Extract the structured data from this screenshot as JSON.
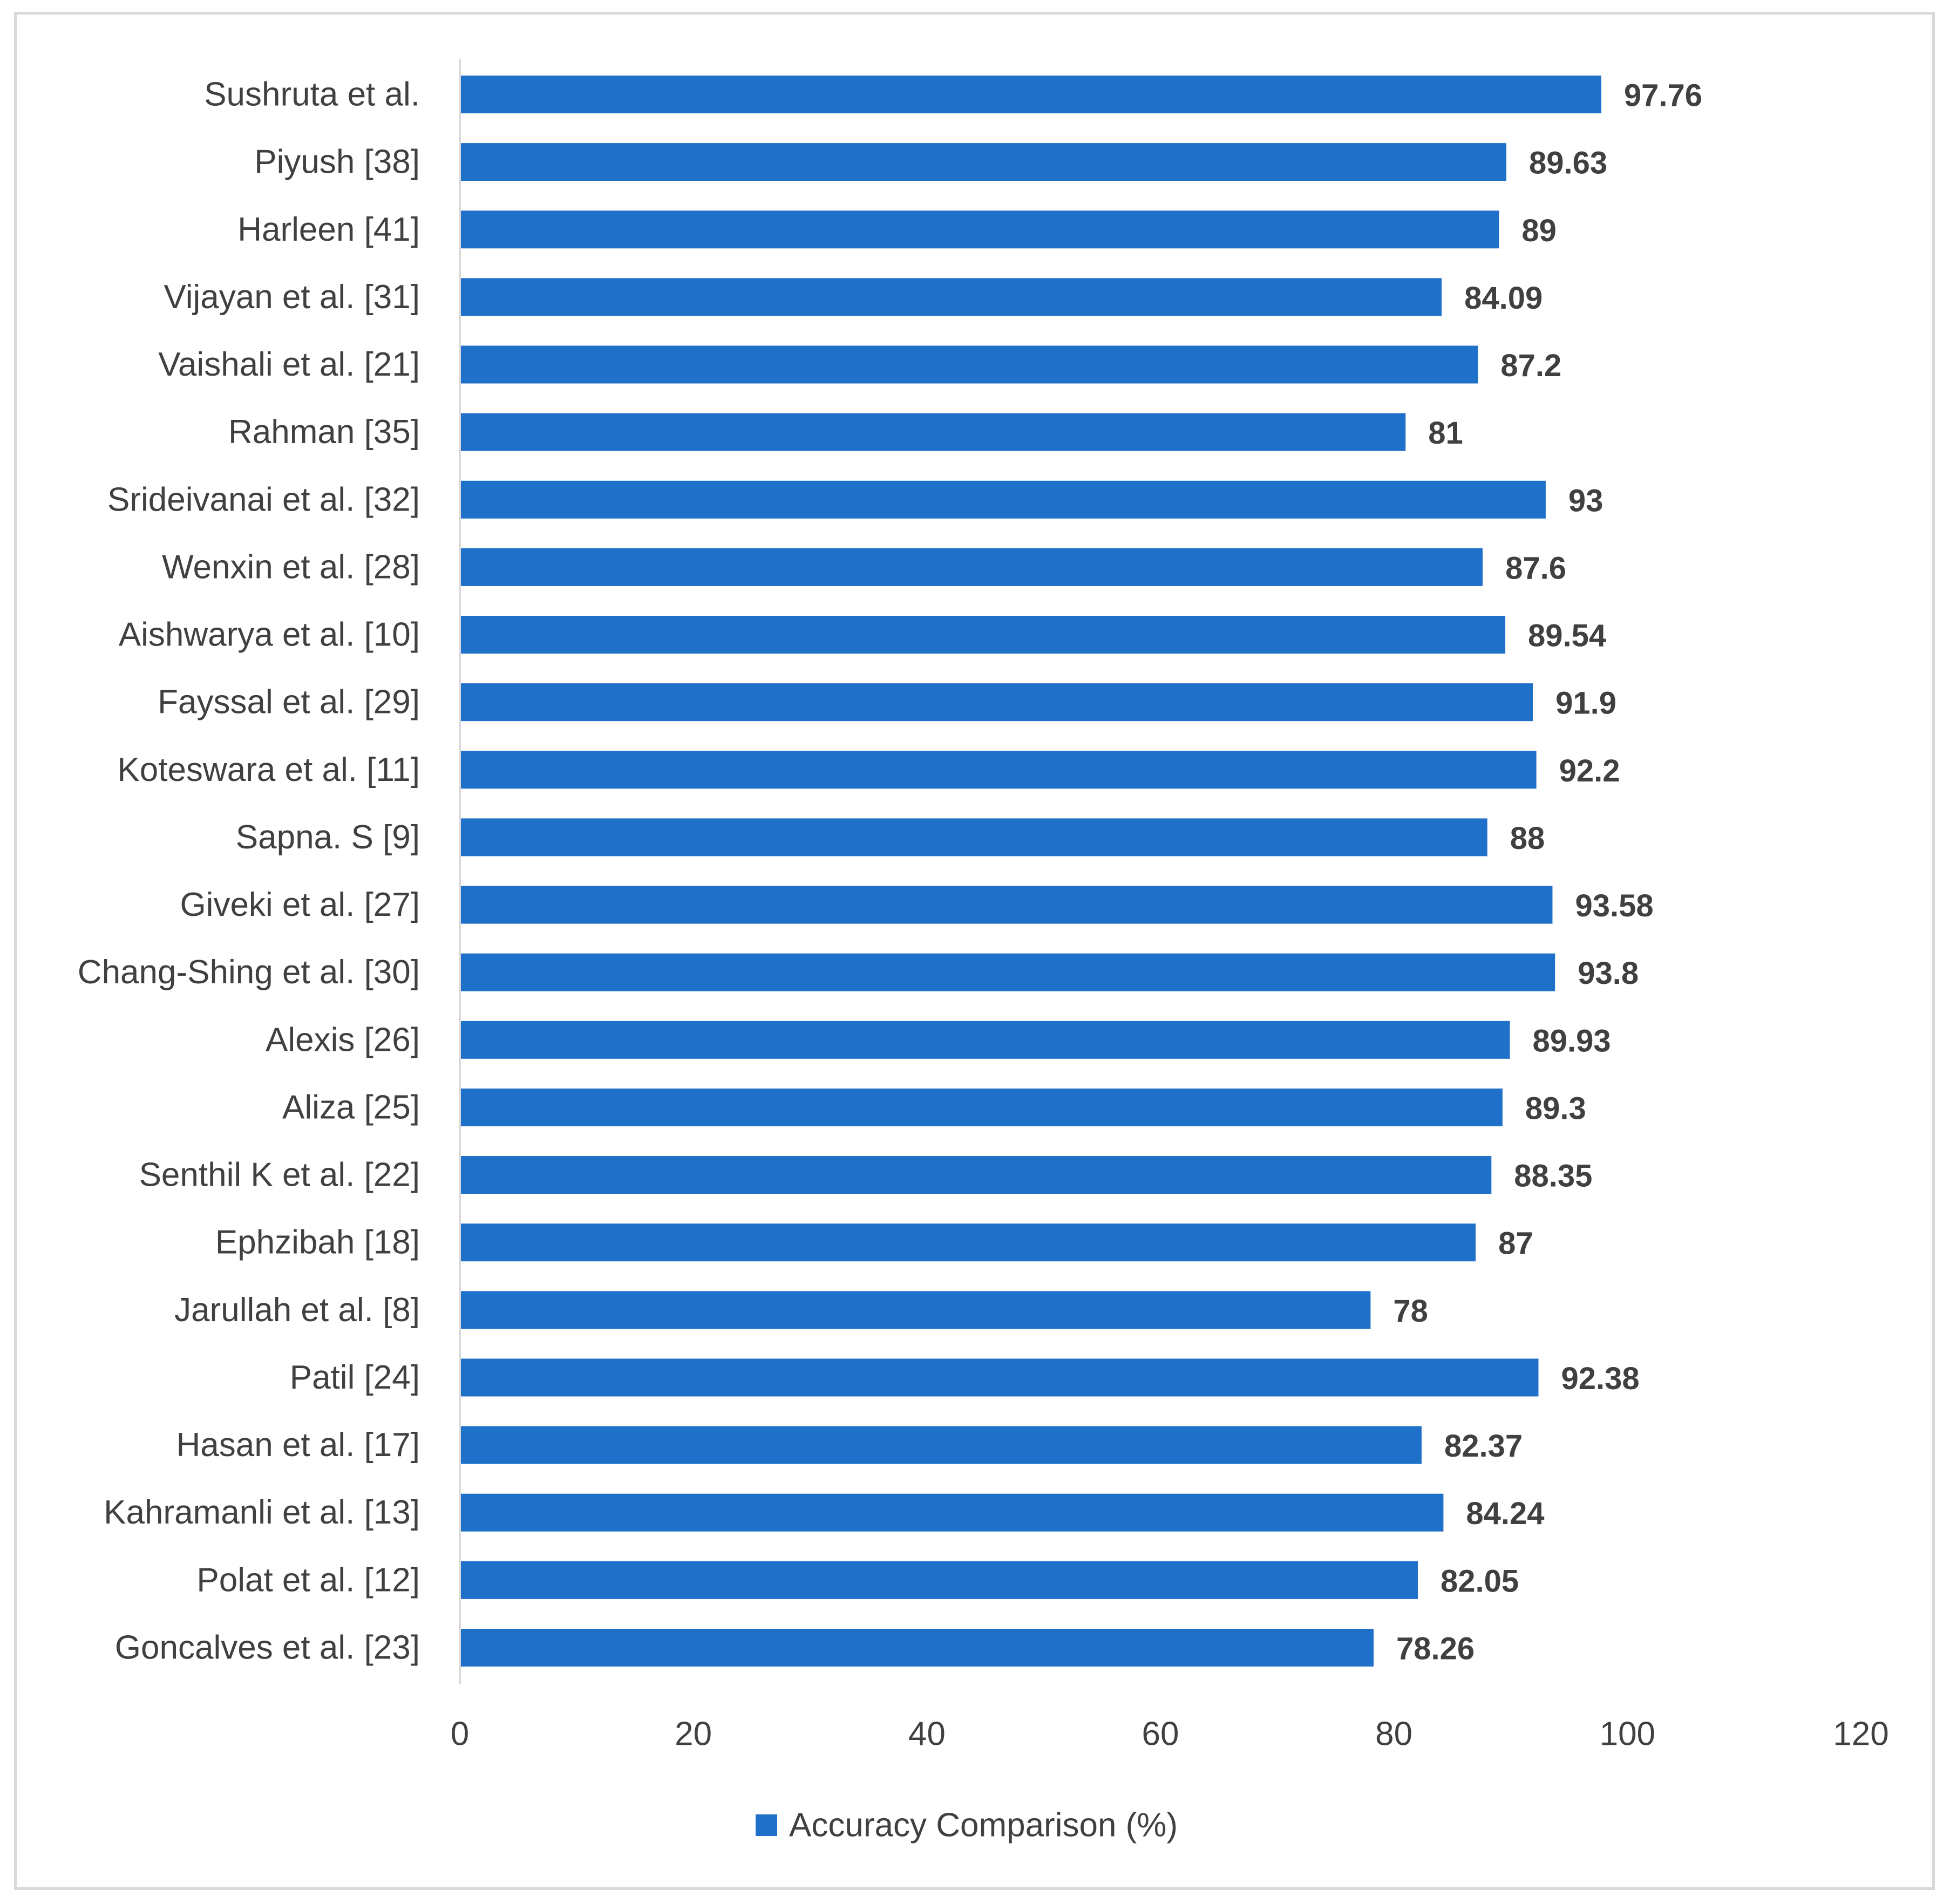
{
  "chart_data": {
    "type": "bar",
    "orientation": "horizontal",
    "title": "",
    "xlabel": "",
    "ylabel": "",
    "xlim": [
      0,
      120
    ],
    "x_ticks": [
      0,
      20,
      40,
      60,
      80,
      100,
      120
    ],
    "grid": false,
    "legend_position": "bottom",
    "bar_color": "#1f70c8",
    "categories": [
      "Sushruta et al.",
      "Piyush [38]",
      "Harleen [41]",
      "Vijayan et al. [31]",
      "Vaishali et al. [21]",
      "Rahman [35]",
      "Srideivanai et al. [32]",
      "Wenxin et al. [28]",
      "Aishwarya et al. [10]",
      "Fayssal et al. [29]",
      "Koteswara et al. [11]",
      "Sapna. S [9]",
      "Giveki et al. [27]",
      "Chang-Shing et al. [30]",
      "Alexis [26]",
      "Aliza [25]",
      "Senthil K et al. [22]",
      "Ephzibah [18]",
      "Jarullah et al. [8]",
      "Patil [24]",
      "Hasan et al. [17]",
      "Kahramanli et al. [13]",
      "Polat et al. [12]",
      "Goncalves et al. [23]"
    ],
    "series": [
      {
        "name": "Accuracy Comparison (%)",
        "values": [
          97.76,
          89.63,
          89,
          84.09,
          87.2,
          81,
          93,
          87.6,
          89.54,
          91.9,
          92.2,
          88,
          93.58,
          93.8,
          89.93,
          89.3,
          88.35,
          87,
          78,
          92.38,
          82.37,
          84.24,
          82.05,
          78.26
        ]
      }
    ]
  }
}
